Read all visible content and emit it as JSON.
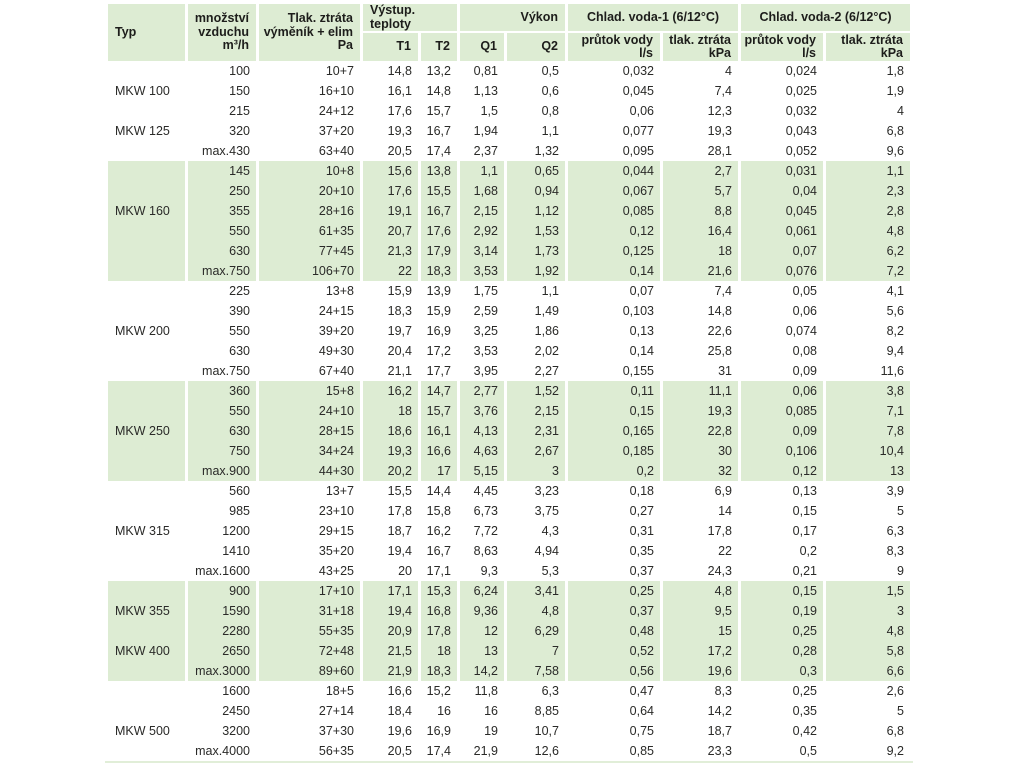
{
  "table": {
    "colors": {
      "stripe_bg": "#ddecd3",
      "header_bg": "#ddecd3",
      "text": "#2a2a28"
    },
    "header": {
      "typ": "Typ",
      "mnozstvi_lines": [
        "množství",
        "vzduchu",
        "m³/h"
      ],
      "tlak_vymenik_lines": [
        "Tlak. ztráta",
        "výměník + elim",
        "Pa"
      ],
      "vystup_teploty": "Výstup. teploty",
      "t1": "T1",
      "t2": "T2",
      "vykon": "Výkon",
      "q1": "Q1",
      "q2": "Q2",
      "chlad_voda_1": "Chlad. voda-1 (6/12°C)",
      "chlad_voda_2": "Chlad. voda-2  (6/12°C)",
      "prutok_lines": [
        "průtok vody",
        "l/s"
      ],
      "tlak_lines": [
        "tlak. ztráta",
        "kPa"
      ]
    },
    "groups": [
      {
        "shaded": false,
        "rows": [
          {
            "typ": "",
            "values": [
              "100",
              "10+7",
              "14,8",
              "13,2",
              "0,81",
              "0,5",
              "0,032",
              "4",
              "0,024",
              "1,8"
            ]
          },
          {
            "typ": "MKW 100",
            "values": [
              "150",
              "16+10",
              "16,1",
              "14,8",
              "1,13",
              "0,6",
              "0,045",
              "7,4",
              "0,025",
              "1,9"
            ]
          },
          {
            "typ": "",
            "values": [
              "215",
              "24+12",
              "17,6",
              "15,7",
              "1,5",
              "0,8",
              "0,06",
              "12,3",
              "0,032",
              "4"
            ]
          },
          {
            "typ": "MKW 125",
            "values": [
              "320",
              "37+20",
              "19,3",
              "16,7",
              "1,94",
              "1,1",
              "0,077",
              "19,3",
              "0,043",
              "6,8"
            ]
          },
          {
            "typ": "",
            "values": [
              "max.430",
              "63+40",
              "20,5",
              "17,4",
              "2,37",
              "1,32",
              "0,095",
              "28,1",
              "0,052",
              "9,6"
            ]
          }
        ]
      },
      {
        "shaded": true,
        "rows": [
          {
            "typ": "",
            "values": [
              "145",
              "10+8",
              "15,6",
              "13,8",
              "1,1",
              "0,65",
              "0,044",
              "2,7",
              "0,031",
              "1,1"
            ]
          },
          {
            "typ": "",
            "values": [
              "250",
              "20+10",
              "17,6",
              "15,5",
              "1,68",
              "0,94",
              "0,067",
              "5,7",
              "0,04",
              "2,3"
            ]
          },
          {
            "typ": "MKW 160",
            "values": [
              "355",
              "28+16",
              "19,1",
              "16,7",
              "2,15",
              "1,12",
              "0,085",
              "8,8",
              "0,045",
              "2,8"
            ]
          },
          {
            "typ": "",
            "values": [
              "550",
              "61+35",
              "20,7",
              "17,6",
              "2,92",
              "1,53",
              "0,12",
              "16,4",
              "0,061",
              "4,8"
            ]
          },
          {
            "typ": "",
            "values": [
              "630",
              "77+45",
              "21,3",
              "17,9",
              "3,14",
              "1,73",
              "0,125",
              "18",
              "0,07",
              "6,2"
            ]
          },
          {
            "typ": "",
            "values": [
              "max.750",
              "106+70",
              "22",
              "18,3",
              "3,53",
              "1,92",
              "0,14",
              "21,6",
              "0,076",
              "7,2"
            ]
          }
        ]
      },
      {
        "shaded": false,
        "rows": [
          {
            "typ": "",
            "values": [
              "225",
              "13+8",
              "15,9",
              "13,9",
              "1,75",
              "1,1",
              "0,07",
              "7,4",
              "0,05",
              "4,1"
            ]
          },
          {
            "typ": "",
            "values": [
              "390",
              "24+15",
              "18,3",
              "15,9",
              "2,59",
              "1,49",
              "0,103",
              "14,8",
              "0,06",
              "5,6"
            ]
          },
          {
            "typ": "MKW 200",
            "values": [
              "550",
              "39+20",
              "19,7",
              "16,9",
              "3,25",
              "1,86",
              "0,13",
              "22,6",
              "0,074",
              "8,2"
            ]
          },
          {
            "typ": "",
            "values": [
              "630",
              "49+30",
              "20,4",
              "17,2",
              "3,53",
              "2,02",
              "0,14",
              "25,8",
              "0,08",
              "9,4"
            ]
          },
          {
            "typ": "",
            "values": [
              "max.750",
              "67+40",
              "21,1",
              "17,7",
              "3,95",
              "2,27",
              "0,155",
              "31",
              "0,09",
              "11,6"
            ]
          }
        ]
      },
      {
        "shaded": true,
        "rows": [
          {
            "typ": "",
            "values": [
              "360",
              "15+8",
              "16,2",
              "14,7",
              "2,77",
              "1,52",
              "0,11",
              "11,1",
              "0,06",
              "3,8"
            ]
          },
          {
            "typ": "",
            "values": [
              "550",
              "24+10",
              "18",
              "15,7",
              "3,76",
              "2,15",
              "0,15",
              "19,3",
              "0,085",
              "7,1"
            ]
          },
          {
            "typ": "MKW 250",
            "values": [
              "630",
              "28+15",
              "18,6",
              "16,1",
              "4,13",
              "2,31",
              "0,165",
              "22,8",
              "0,09",
              "7,8"
            ]
          },
          {
            "typ": "",
            "values": [
              "750",
              "34+24",
              "19,3",
              "16,6",
              "4,63",
              "2,67",
              "0,185",
              "30",
              "0,106",
              "10,4"
            ]
          },
          {
            "typ": "",
            "values": [
              "max.900",
              "44+30",
              "20,2",
              "17",
              "5,15",
              "3",
              "0,2",
              "32",
              "0,12",
              "13"
            ]
          }
        ]
      },
      {
        "shaded": false,
        "rows": [
          {
            "typ": "",
            "values": [
              "560",
              "13+7",
              "15,5",
              "14,4",
              "4,45",
              "3,23",
              "0,18",
              "6,9",
              "0,13",
              "3,9"
            ]
          },
          {
            "typ": "",
            "values": [
              "985",
              "23+10",
              "17,8",
              "15,8",
              "6,73",
              "3,75",
              "0,27",
              "14",
              "0,15",
              "5"
            ]
          },
          {
            "typ": "MKW 315",
            "values": [
              "1200",
              "29+15",
              "18,7",
              "16,2",
              "7,72",
              "4,3",
              "0,31",
              "17,8",
              "0,17",
              "6,3"
            ]
          },
          {
            "typ": "",
            "values": [
              "1410",
              "35+20",
              "19,4",
              "16,7",
              "8,63",
              "4,94",
              "0,35",
              "22",
              "0,2",
              "8,3"
            ]
          },
          {
            "typ": "",
            "values": [
              "max.1600",
              "43+25",
              "20",
              "17,1",
              "9,3",
              "5,3",
              "0,37",
              "24,3",
              "0,21",
              "9"
            ]
          }
        ]
      },
      {
        "shaded": true,
        "rows": [
          {
            "typ": "",
            "values": [
              "900",
              "17+10",
              "17,1",
              "15,3",
              "6,24",
              "3,41",
              "0,25",
              "4,8",
              "0,15",
              "1,5"
            ]
          },
          {
            "typ": "MKW 355",
            "values": [
              "1590",
              "31+18",
              "19,4",
              "16,8",
              "9,36",
              "4,8",
              "0,37",
              "9,5",
              "0,19",
              "3"
            ]
          },
          {
            "typ": "",
            "values": [
              "2280",
              "55+35",
              "20,9",
              "17,8",
              "12",
              "6,29",
              "0,48",
              "15",
              "0,25",
              "4,8"
            ]
          },
          {
            "typ": "MKW 400",
            "values": [
              "2650",
              "72+48",
              "21,5",
              "18",
              "13",
              "7",
              "0,52",
              "17,2",
              "0,28",
              "5,8"
            ]
          },
          {
            "typ": "",
            "values": [
              "max.3000",
              "89+60",
              "21,9",
              "18,3",
              "14,2",
              "7,58",
              "0,56",
              "19,6",
              "0,3",
              "6,6"
            ]
          }
        ]
      },
      {
        "shaded": false,
        "rows": [
          {
            "typ": "",
            "values": [
              "1600",
              "18+5",
              "16,6",
              "15,2",
              "11,8",
              "6,3",
              "0,47",
              "8,3",
              "0,25",
              "2,6"
            ]
          },
          {
            "typ": "",
            "values": [
              "2450",
              "27+14",
              "18,4",
              "16",
              "16",
              "8,85",
              "0,64",
              "14,2",
              "0,35",
              "5"
            ]
          },
          {
            "typ": "MKW 500",
            "values": [
              "3200",
              "37+30",
              "19,6",
              "16,9",
              "19",
              "10,7",
              "0,75",
              "18,7",
              "0,42",
              "6,8"
            ]
          },
          {
            "typ": "",
            "values": [
              "max.4000",
              "56+35",
              "20,5",
              "17,4",
              "21,9",
              "12,6",
              "0,85",
              "23,3",
              "0,5",
              "9,2"
            ]
          }
        ]
      }
    ]
  }
}
